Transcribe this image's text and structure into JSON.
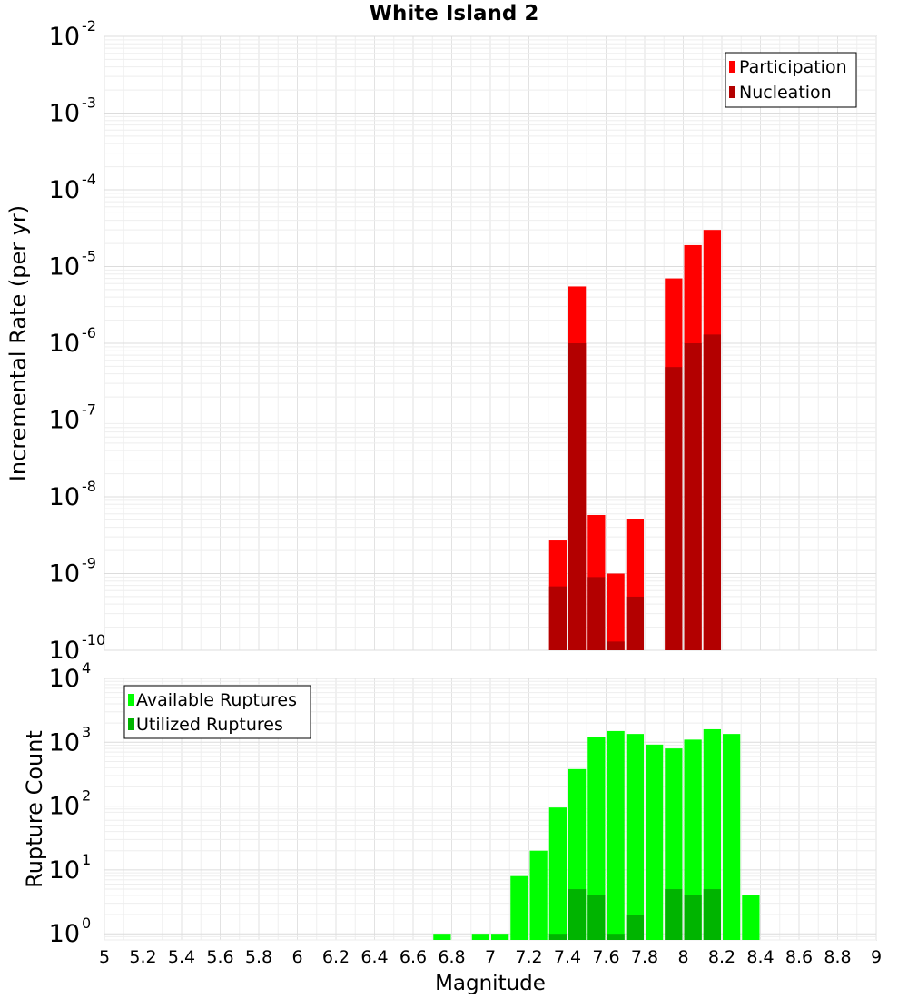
{
  "chart_data": [
    {
      "type": "bar",
      "title": "White Island 2",
      "xlabel": "",
      "ylabel": "Incremental Rate (per yr)",
      "yscale": "log",
      "xlim": [
        5,
        9
      ],
      "ylim": [
        1e-10,
        0.01
      ],
      "bar_width": 0.1,
      "grid": true,
      "legend_position": "top-right",
      "y_ticks": [
        {
          "base": "10",
          "exp": "-10",
          "value": 1e-10
        },
        {
          "base": "10",
          "exp": "-9",
          "value": 1e-09
        },
        {
          "base": "10",
          "exp": "-8",
          "value": 1e-08
        },
        {
          "base": "10",
          "exp": "-7",
          "value": 1e-07
        },
        {
          "base": "10",
          "exp": "-6",
          "value": 1e-06
        },
        {
          "base": "10",
          "exp": "-5",
          "value": 1e-05
        },
        {
          "base": "10",
          "exp": "-4",
          "value": 0.0001
        },
        {
          "base": "10",
          "exp": "-3",
          "value": 0.001
        },
        {
          "base": "10",
          "exp": "-2",
          "value": 0.01
        }
      ],
      "x": [
        7.35,
        7.45,
        7.55,
        7.65,
        7.75,
        7.95,
        8.05,
        8.15
      ],
      "series": [
        {
          "name": "Participation",
          "color": "#ff0000",
          "values": [
            2.7e-09,
            5.5e-06,
            5.8e-09,
            1e-09,
            5.2e-09,
            7e-06,
            1.9e-05,
            3e-05
          ]
        },
        {
          "name": "Nucleation",
          "color": "#b30000",
          "values": [
            6.8e-10,
            1e-06,
            9e-10,
            1.3e-10,
            5e-10,
            4.9e-07,
            1e-06,
            1.3e-06
          ]
        }
      ]
    },
    {
      "type": "bar",
      "title": "",
      "xlabel": "Magnitude",
      "ylabel": "Rupture Count",
      "yscale": "log",
      "xlim": [
        5,
        9
      ],
      "ylim": [
        0.8,
        10000
      ],
      "bar_width": 0.1,
      "grid": true,
      "legend_position": "top-left",
      "x_ticks": [
        "5",
        "5.2",
        "5.4",
        "5.6",
        "5.8",
        "6",
        "6.2",
        "6.4",
        "6.6",
        "6.8",
        "7",
        "7.2",
        "7.4",
        "7.6",
        "7.8",
        "8",
        "8.2",
        "8.4",
        "8.6",
        "8.8",
        "9"
      ],
      "y_ticks": [
        {
          "base": "10",
          "exp": "0",
          "value": 1
        },
        {
          "base": "10",
          "exp": "1",
          "value": 10
        },
        {
          "base": "10",
          "exp": "2",
          "value": 100
        },
        {
          "base": "10",
          "exp": "3",
          "value": 1000
        },
        {
          "base": "10",
          "exp": "4",
          "value": 10000
        }
      ],
      "x": [
        6.75,
        6.95,
        7.05,
        7.15,
        7.25,
        7.35,
        7.45,
        7.55,
        7.65,
        7.75,
        7.85,
        7.95,
        8.05,
        8.15,
        8.25,
        8.35
      ],
      "series": [
        {
          "name": "Available Ruptures",
          "color": "#00ff00",
          "values": [
            1,
            1,
            1,
            8,
            20,
            95,
            380,
            1200,
            1500,
            1350,
            920,
            800,
            1100,
            1600,
            1350,
            4
          ]
        },
        {
          "name": "Utilized Ruptures",
          "color": "#00b400",
          "values": [
            0,
            0,
            0,
            0,
            0,
            1,
            5,
            4,
            1,
            2,
            0,
            5,
            4,
            5,
            0,
            0
          ]
        }
      ]
    }
  ]
}
